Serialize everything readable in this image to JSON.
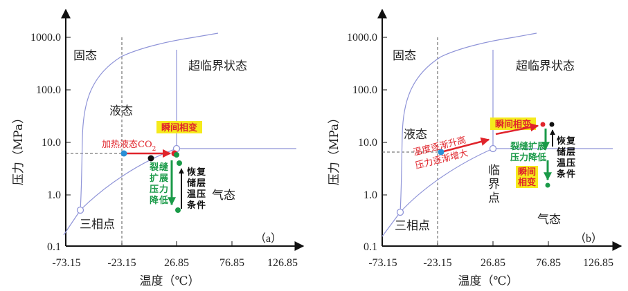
{
  "panels": [
    {
      "id": "a",
      "x_ticks": [
        "-73.15",
        "-23.15",
        "26.85",
        "76.85",
        "126.85"
      ],
      "y_ticks": [
        "1000.0",
        "100.0",
        "10.0",
        "1.0",
        "0.1"
      ],
      "x_label": "温度（℃）",
      "y_label": "压力（MPa）",
      "regions": {
        "solid": "固态",
        "supercritical": "超临界状态",
        "liquid": "液态",
        "gas": "气态",
        "triple": "三相点"
      },
      "annotations": {
        "phase_change": "瞬间相变",
        "heating": "加热液态CO",
        "heating_sub": "2",
        "crack_drop": "裂缝扩展压力降低",
        "recover": "恢复储层温压条件",
        "tag": "（a）"
      }
    },
    {
      "id": "b",
      "x_ticks": [
        "-73.15",
        "-23.15",
        "26.85",
        "76.85",
        "126.85"
      ],
      "y_ticks": [
        "1000.0",
        "100.0",
        "10.0",
        "1.0",
        "0.1"
      ],
      "x_label": "温度（℃）",
      "y_label": "压力（MPa）",
      "regions": {
        "solid": "固态",
        "supercritical": "超临界状态",
        "liquid": "液态",
        "gas": "气态",
        "triple": "三相点",
        "critical": "临界点"
      },
      "annotations": {
        "phase_change": "瞬间相变",
        "heating_line1": "温度逐渐升高",
        "heating_line2": "压力逐渐增大",
        "crack_drop_line1": "裂缝扩展",
        "crack_drop_line2": "压力降低",
        "instant_line1": "瞬间",
        "instant_line2": "相变",
        "recover": "恢复储层温压条件",
        "tag": "（b）"
      }
    }
  ],
  "colors": {
    "curve": "#8f94d8",
    "grid_dash": "#555555",
    "red_arrow": "#e0242b",
    "green": "#1a9a48",
    "blue_dot": "#2a8fd6",
    "highlight": "#f5ea1c",
    "black": "#111111"
  }
}
